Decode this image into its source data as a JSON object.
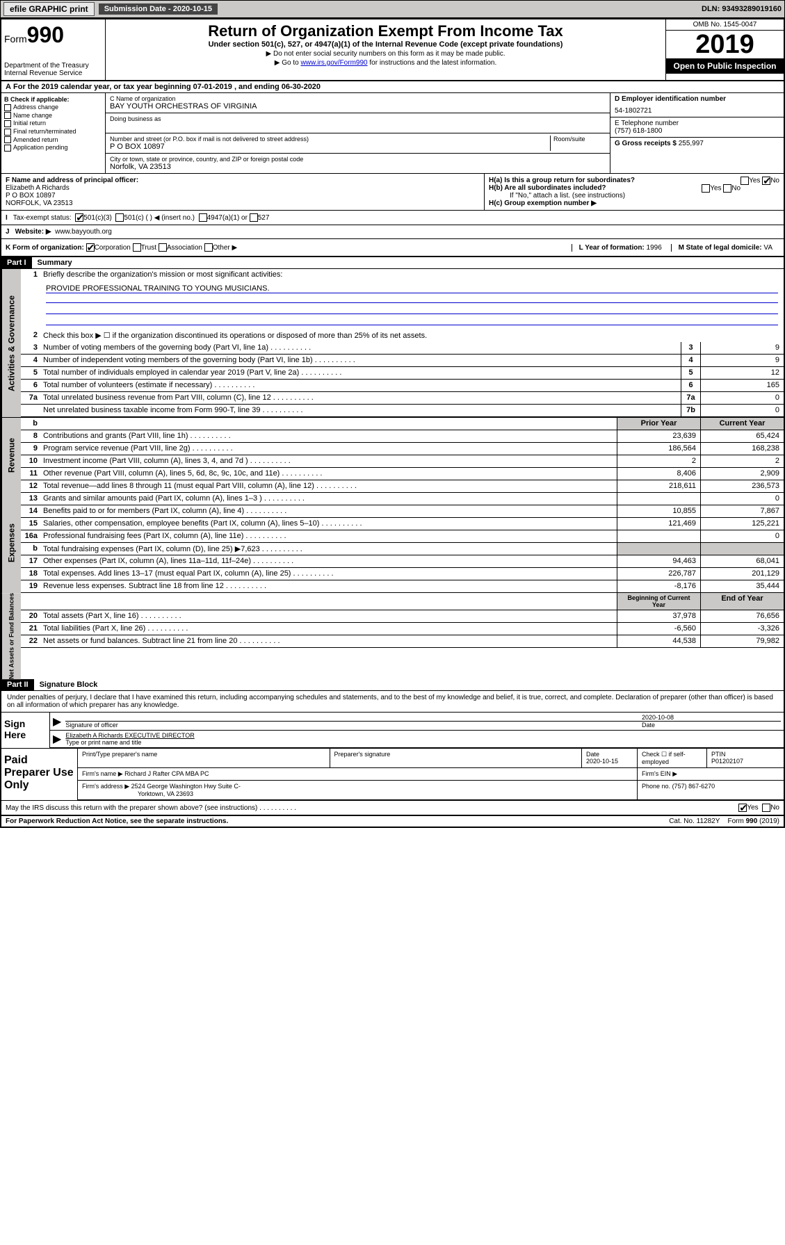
{
  "topbar": {
    "efile": "efile GRAPHIC print",
    "subdate_label": "Submission Date - 2020-10-15",
    "dln": "DLN: 93493289019160"
  },
  "header": {
    "form_label": "Form",
    "form_num": "990",
    "dept": "Department of the Treasury\nInternal Revenue Service",
    "title": "Return of Organization Exempt From Income Tax",
    "sub1": "Under section 501(c), 527, or 4947(a)(1) of the Internal Revenue Code (except private foundations)",
    "sub2": "▶ Do not enter social security numbers on this form as it may be made public.",
    "sub3_pre": "▶ Go to ",
    "sub3_link": "www.irs.gov/Form990",
    "sub3_post": " for instructions and the latest information.",
    "omb": "OMB No. 1545-0047",
    "year": "2019",
    "open": "Open to Public Inspection"
  },
  "A": "For the 2019 calendar year, or tax year beginning 07-01-2019    , and ending 06-30-2020",
  "B": {
    "label": "B Check if applicable:",
    "opts": [
      "Address change",
      "Name change",
      "Initial return",
      "Final return/terminated",
      "Amended return",
      "Application pending"
    ]
  },
  "C": {
    "name_lbl": "C Name of organization",
    "name": "BAY YOUTH ORCHESTRAS OF VIRGINIA",
    "dba_lbl": "Doing business as",
    "addr_lbl": "Number and street (or P.O. box if mail is not delivered to street address)",
    "room_lbl": "Room/suite",
    "addr": "P O BOX 10897",
    "city_lbl": "City or town, state or province, country, and ZIP or foreign postal code",
    "city": "Norfolk, VA  23513"
  },
  "D": {
    "lbl": "D Employer identification number",
    "val": "54-1802721"
  },
  "E": {
    "lbl": "E Telephone number",
    "val": "(757) 618-1800"
  },
  "G": {
    "lbl": "G Gross receipts $",
    "val": "255,997"
  },
  "F": {
    "lbl": "F  Name and address of principal officer:",
    "name": "Elizabeth A Richards",
    "addr1": "P O BOX 10897",
    "addr2": "NORFOLK, VA  23513"
  },
  "H": {
    "a": "H(a)  Is this a group return for subordinates?",
    "b": "H(b)  Are all subordinates included?",
    "b2": "If \"No,\" attach a list. (see instructions)",
    "c": "H(c)  Group exemption number ▶",
    "yes": "Yes",
    "no": "No"
  },
  "I": {
    "lbl": "Tax-exempt status:",
    "o1": "501(c)(3)",
    "o2": "501(c) (   ) ◀ (insert no.)",
    "o3": "4947(a)(1) or",
    "o4": "527"
  },
  "J": {
    "lbl": "Website: ▶",
    "val": "www.bayyouth.org"
  },
  "K": {
    "lbl": "K Form of organization:",
    "o1": "Corporation",
    "o2": "Trust",
    "o3": "Association",
    "o4": "Other ▶"
  },
  "L": {
    "lbl": "L Year of formation:",
    "val": "1996"
  },
  "M": {
    "lbl": "M State of legal domicile:",
    "val": "VA"
  },
  "part1": {
    "bar": "Part I",
    "title": "Summary"
  },
  "summary": {
    "l1_lbl": "Briefly describe the organization's mission or most significant activities:",
    "l1_val": "PROVIDE PROFESSIONAL TRAINING TO YOUNG MUSICIANS.",
    "l2": "Check this box ▶ ☐  if the organization discontinued its operations or disposed of more than 25% of its net assets.",
    "rows_single": [
      {
        "n": "3",
        "t": "Number of voting members of the governing body (Part VI, line 1a)",
        "b": "3",
        "v": "9"
      },
      {
        "n": "4",
        "t": "Number of independent voting members of the governing body (Part VI, line 1b)",
        "b": "4",
        "v": "9"
      },
      {
        "n": "5",
        "t": "Total number of individuals employed in calendar year 2019 (Part V, line 2a)",
        "b": "5",
        "v": "12"
      },
      {
        "n": "6",
        "t": "Total number of volunteers (estimate if necessary)",
        "b": "6",
        "v": "165"
      },
      {
        "n": "7a",
        "t": "Total unrelated business revenue from Part VIII, column (C), line 12",
        "b": "7a",
        "v": "0"
      },
      {
        "n": "",
        "t": "Net unrelated business taxable income from Form 990-T, line 39",
        "b": "7b",
        "v": "0"
      }
    ],
    "col_prior": "Prior Year",
    "col_current": "Current Year",
    "revenue": [
      {
        "n": "8",
        "t": "Contributions and grants (Part VIII, line 1h)",
        "p": "23,639",
        "c": "65,424"
      },
      {
        "n": "9",
        "t": "Program service revenue (Part VIII, line 2g)",
        "p": "186,564",
        "c": "168,238"
      },
      {
        "n": "10",
        "t": "Investment income (Part VIII, column (A), lines 3, 4, and 7d )",
        "p": "2",
        "c": "2"
      },
      {
        "n": "11",
        "t": "Other revenue (Part VIII, column (A), lines 5, 6d, 8c, 9c, 10c, and 11e)",
        "p": "8,406",
        "c": "2,909"
      },
      {
        "n": "12",
        "t": "Total revenue—add lines 8 through 11 (must equal Part VIII, column (A), line 12)",
        "p": "218,611",
        "c": "236,573"
      }
    ],
    "expenses": [
      {
        "n": "13",
        "t": "Grants and similar amounts paid (Part IX, column (A), lines 1–3 )",
        "p": "",
        "c": "0"
      },
      {
        "n": "14",
        "t": "Benefits paid to or for members (Part IX, column (A), line 4)",
        "p": "10,855",
        "c": "7,867"
      },
      {
        "n": "15",
        "t": "Salaries, other compensation, employee benefits (Part IX, column (A), lines 5–10)",
        "p": "121,469",
        "c": "125,221"
      },
      {
        "n": "16a",
        "t": "Professional fundraising fees (Part IX, column (A), line 11e)",
        "p": "",
        "c": "0"
      },
      {
        "n": "b",
        "t": "Total fundraising expenses (Part IX, column (D), line 25) ▶7,623",
        "p": "GREY",
        "c": "GREY"
      },
      {
        "n": "17",
        "t": "Other expenses (Part IX, column (A), lines 11a–11d, 11f–24e)",
        "p": "94,463",
        "c": "68,041"
      },
      {
        "n": "18",
        "t": "Total expenses. Add lines 13–17 (must equal Part IX, column (A), line 25)",
        "p": "226,787",
        "c": "201,129"
      },
      {
        "n": "19",
        "t": "Revenue less expenses. Subtract line 18 from line 12",
        "p": "-8,176",
        "c": "35,444"
      }
    ],
    "col_begin": "Beginning of Current Year",
    "col_end": "End of Year",
    "netassets": [
      {
        "n": "20",
        "t": "Total assets (Part X, line 16)",
        "p": "37,978",
        "c": "76,656"
      },
      {
        "n": "21",
        "t": "Total liabilities (Part X, line 26)",
        "p": "-6,560",
        "c": "-3,326"
      },
      {
        "n": "22",
        "t": "Net assets or fund balances. Subtract line 21 from line 20",
        "p": "44,538",
        "c": "79,982"
      }
    ],
    "side_gov": "Activities & Governance",
    "side_rev": "Revenue",
    "side_exp": "Expenses",
    "side_net": "Net Assets or Fund Balances"
  },
  "part2": {
    "bar": "Part II",
    "title": "Signature Block"
  },
  "sig": {
    "decl": "Under penalties of perjury, I declare that I have examined this return, including accompanying schedules and statements, and to the best of my knowledge and belief, it is true, correct, and complete. Declaration of preparer (other than officer) is based on all information of which preparer has any knowledge.",
    "sign_here": "Sign Here",
    "sig_officer": "Signature of officer",
    "date": "2020-10-08",
    "date_lbl": "Date",
    "name_title": "Elizabeth A Richards  EXECUTIVE DIRECTOR",
    "name_lbl": "Type or print name and title"
  },
  "paid": {
    "title": "Paid Preparer Use Only",
    "h1": "Print/Type preparer's name",
    "h2": "Preparer's signature",
    "h3": "Date",
    "h3v": "2020-10-15",
    "h4": "Check ☐ if self-employed",
    "h5": "PTIN",
    "h5v": "P01202107",
    "firm_lbl": "Firm's name    ▶",
    "firm": "Richard J Rafter CPA MBA PC",
    "ein_lbl": "Firm's EIN ▶",
    "addr_lbl": "Firm's address ▶",
    "addr": "2524 George Washington Hwy Suite C-",
    "addr2": "Yorktown, VA  23693",
    "phone_lbl": "Phone no.",
    "phone": "(757) 867-6270"
  },
  "discuss": {
    "q": "May the IRS discuss this return with the preparer shown above? (see instructions)",
    "yes": "Yes",
    "no": "No"
  },
  "footer": {
    "l": "For Paperwork Reduction Act Notice, see the separate instructions.",
    "c": "Cat. No. 11282Y",
    "r": "Form 990 (2019)"
  }
}
